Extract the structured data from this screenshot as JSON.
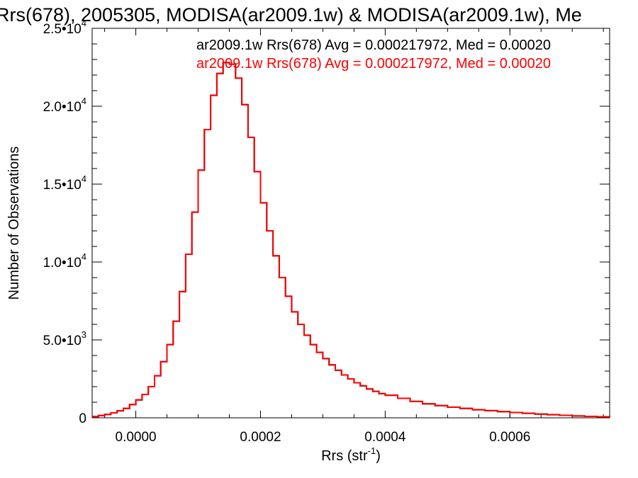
{
  "chart_data": {
    "type": "line",
    "title": "Rrs(678), 2005305, MODISA(ar2009.1w) & MODISA(ar2009.1w), Me",
    "xlabel": "Rrs (str",
    "xlabel_sup": "-1",
    "xlabel_close": ")",
    "ylabel": "Number of Observations",
    "xlim": [
      -7e-05,
      0.00076
    ],
    "ylim": [
      0,
      25000
    ],
    "x_ticks": [
      {
        "value": 0.0,
        "label": "0.0000"
      },
      {
        "value": 0.0002,
        "label": "0.0002"
      },
      {
        "value": 0.0004,
        "label": "0.0004"
      },
      {
        "value": 0.0006,
        "label": "0.0006"
      }
    ],
    "y_ticks": [
      {
        "value": 0,
        "label": "0",
        "exp": ""
      },
      {
        "value": 5000,
        "label": "5.0•10",
        "exp": "3"
      },
      {
        "value": 10000,
        "label": "1.0•10",
        "exp": "4"
      },
      {
        "value": 15000,
        "label": "1.5•10",
        "exp": "4"
      },
      {
        "value": 20000,
        "label": "2.0•10",
        "exp": "4"
      },
      {
        "value": 25000,
        "label": "2.5•10",
        "exp": "4"
      }
    ],
    "grid": false,
    "legend_position": "top-right",
    "series": [
      {
        "name": "ar2009.1w Rrs(678) Avg = 0.000217972, Med = 0.00020",
        "color": "#000000",
        "x": [
          -7e-05,
          -6e-05,
          -5e-05,
          -4e-05,
          -3e-05,
          -2e-05,
          -1e-05,
          0.0,
          1e-05,
          2e-05,
          3e-05,
          4e-05,
          5e-05,
          6e-05,
          7e-05,
          8e-05,
          9e-05,
          0.0001,
          0.00011,
          0.00012,
          0.00013,
          0.00014,
          0.00015,
          0.00016,
          0.00017,
          0.00018,
          0.00019,
          0.0002,
          0.00021,
          0.00022,
          0.00023,
          0.00024,
          0.00025,
          0.00026,
          0.00027,
          0.00028,
          0.00029,
          0.0003,
          0.00031,
          0.00032,
          0.00033,
          0.00034,
          0.00035,
          0.00036,
          0.00037,
          0.00038,
          0.00039,
          0.0004,
          0.00042,
          0.00044,
          0.00046,
          0.00048,
          0.0005,
          0.00052,
          0.00054,
          0.00056,
          0.00058,
          0.0006,
          0.00062,
          0.00064,
          0.00066,
          0.00068,
          0.0007,
          0.00072,
          0.00074,
          0.00076
        ],
        "values": [
          80,
          150,
          220,
          320,
          450,
          600,
          850,
          1150,
          1500,
          2000,
          2700,
          3600,
          4700,
          6200,
          8100,
          10500,
          13200,
          15900,
          18500,
          20700,
          22100,
          22800,
          22700,
          21800,
          20100,
          18000,
          15800,
          13800,
          12000,
          10400,
          9000,
          7800,
          6800,
          6000,
          5300,
          4700,
          4200,
          3800,
          3400,
          3050,
          2750,
          2500,
          2250,
          2050,
          1850,
          1700,
          1550,
          1450,
          1250,
          1050,
          900,
          780,
          680,
          600,
          520,
          460,
          400,
          340,
          290,
          240,
          200,
          160,
          120,
          90,
          70,
          50
        ]
      },
      {
        "name": "ar2009.1w Rrs(678) Avg = 0.000217972, Med = 0.00020",
        "color": "#ff0000",
        "x": [
          -7e-05,
          -6e-05,
          -5e-05,
          -4e-05,
          -3e-05,
          -2e-05,
          -1e-05,
          0.0,
          1e-05,
          2e-05,
          3e-05,
          4e-05,
          5e-05,
          6e-05,
          7e-05,
          8e-05,
          9e-05,
          0.0001,
          0.00011,
          0.00012,
          0.00013,
          0.00014,
          0.00015,
          0.00016,
          0.00017,
          0.00018,
          0.00019,
          0.0002,
          0.00021,
          0.00022,
          0.00023,
          0.00024,
          0.00025,
          0.00026,
          0.00027,
          0.00028,
          0.00029,
          0.0003,
          0.00031,
          0.00032,
          0.00033,
          0.00034,
          0.00035,
          0.00036,
          0.00037,
          0.00038,
          0.00039,
          0.0004,
          0.00042,
          0.00044,
          0.00046,
          0.00048,
          0.0005,
          0.00052,
          0.00054,
          0.00056,
          0.00058,
          0.0006,
          0.00062,
          0.00064,
          0.00066,
          0.00068,
          0.0007,
          0.00072,
          0.00074,
          0.00076
        ],
        "values": [
          80,
          150,
          220,
          320,
          450,
          600,
          850,
          1150,
          1500,
          2000,
          2700,
          3600,
          4700,
          6200,
          8100,
          10500,
          13200,
          15900,
          18500,
          20700,
          22100,
          22800,
          22700,
          21800,
          20100,
          18000,
          15800,
          13800,
          12000,
          10400,
          9000,
          7800,
          6800,
          6000,
          5300,
          4700,
          4200,
          3800,
          3400,
          3050,
          2750,
          2500,
          2250,
          2050,
          1850,
          1700,
          1550,
          1450,
          1250,
          1050,
          900,
          780,
          680,
          600,
          520,
          460,
          400,
          340,
          290,
          240,
          200,
          160,
          120,
          90,
          70,
          50
        ]
      }
    ]
  }
}
